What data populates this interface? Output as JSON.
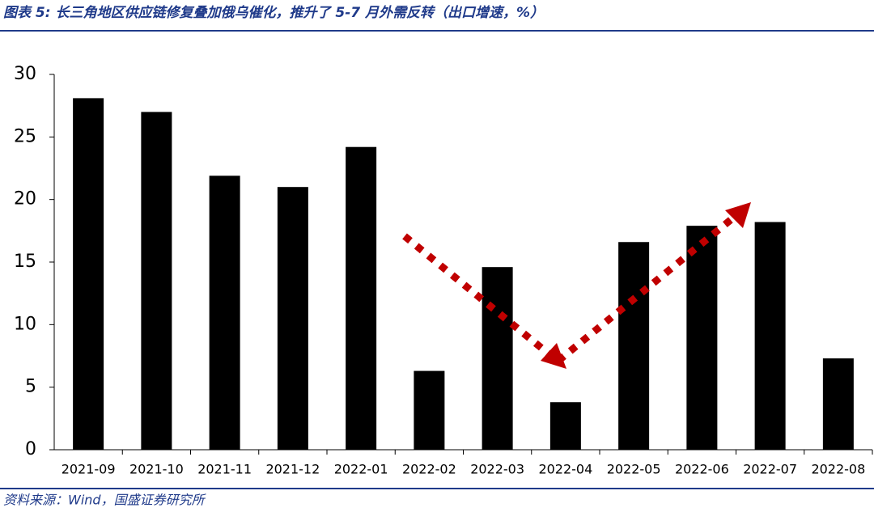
{
  "chart_data": {
    "type": "bar",
    "title": "图表 5: 长三角地区供应链修复叠加俄乌催化，推升了 5-7 月外需反转（出口增速，%）",
    "source": "资料来源：Wind，国盛证券研究所",
    "categories": [
      "2021-09",
      "2021-10",
      "2021-11",
      "2021-12",
      "2022-01",
      "2022-02",
      "2022-03",
      "2022-04",
      "2022-05",
      "2022-06",
      "2022-07",
      "2022-08"
    ],
    "values": [
      28.1,
      27.0,
      21.9,
      21.0,
      24.2,
      6.3,
      14.6,
      3.8,
      16.6,
      17.9,
      18.2,
      7.3
    ],
    "color": "#000000",
    "ylim": [
      0,
      30
    ],
    "yticks": [
      0,
      5,
      10,
      15,
      20,
      25,
      30
    ],
    "grid": false
  }
}
